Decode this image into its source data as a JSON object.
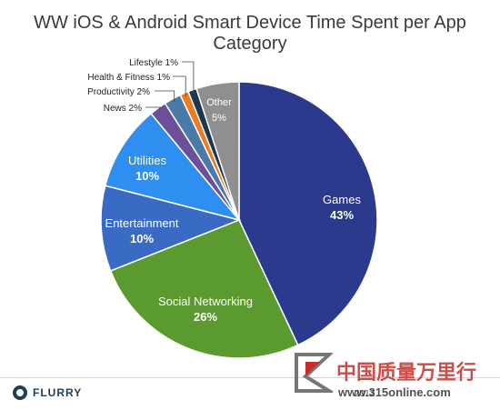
{
  "title": "WW iOS & Android Smart Device Time Spent per App Category",
  "footer": {
    "brand": "FLURRY",
    "note": "2012"
  },
  "watermark": {
    "text": "中国质量万里行",
    "url": "www.315online.com"
  },
  "colors": {
    "games": "#2b3a8c",
    "social": "#5a9a2e",
    "entertainment": "#3a6bc4",
    "utilities": "#2f8ff0",
    "news": "#6b4f9a",
    "productivity": "#4a7ba8",
    "health": "#f07a1e",
    "lifestyle": "#1c3650",
    "other": "#8f8f8f"
  },
  "chart_data": {
    "type": "pie",
    "title": "WW iOS & Android Smart Device Time Spent per App Category",
    "slices": [
      {
        "label": "Games",
        "value": 43,
        "value_label": "43%",
        "color": "#2b3a8c",
        "label_style": "inside-light"
      },
      {
        "label": "Social Networking",
        "value": 26,
        "value_label": "26%",
        "color": "#5a9a2e",
        "label_style": "inside-light"
      },
      {
        "label": "Entertainment",
        "value": 10,
        "value_label": "10%",
        "color": "#3a6bc4",
        "label_style": "inside-light"
      },
      {
        "label": "Utilities",
        "value": 10,
        "value_label": "10%",
        "color": "#2f8ff0",
        "label_style": "inside-light"
      },
      {
        "label": "News",
        "value": 2,
        "value_label": "2%",
        "color": "#6b4f9a",
        "label_style": "outside"
      },
      {
        "label": "Productivity",
        "value": 2,
        "value_label": "2%",
        "color": "#4a7ba8",
        "label_style": "outside"
      },
      {
        "label": "Health & Fitness",
        "value": 1,
        "value_label": "1%",
        "color": "#f07a1e",
        "label_style": "outside"
      },
      {
        "label": "Lifestyle",
        "value": 1,
        "value_label": "1%",
        "color": "#1c3650",
        "label_style": "outside"
      },
      {
        "label": "Other",
        "value": 5,
        "value_label": "5%",
        "color": "#8f8f8f",
        "label_style": "inside-light"
      }
    ],
    "start": "12 o'clock",
    "direction": "clockwise"
  }
}
